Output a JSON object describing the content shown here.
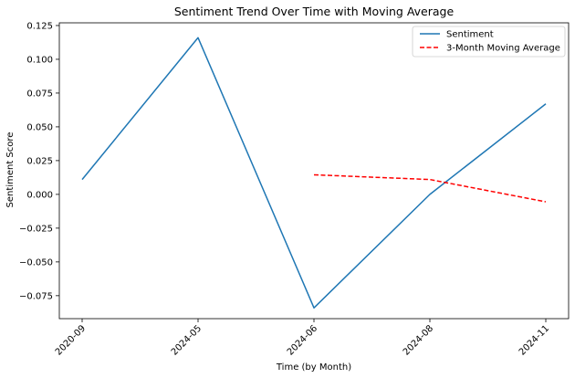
{
  "chart_data": {
    "type": "line",
    "title": "Sentiment Trend Over Time with Moving Average",
    "xlabel": "Time (by Month)",
    "ylabel": "Sentiment Score",
    "categories": [
      "2020-09",
      "2024-05",
      "2024-06",
      "2024-08",
      "2024-11"
    ],
    "ylim": [
      -0.092,
      0.127
    ],
    "yticks": [
      -0.075,
      -0.05,
      -0.025,
      0.0,
      0.025,
      0.05,
      0.075,
      0.1,
      0.125
    ],
    "ytick_labels": [
      "−0.075",
      "−0.050",
      "−0.025",
      "0.000",
      "0.025",
      "0.050",
      "0.075",
      "0.100",
      "0.125"
    ],
    "grid": false,
    "legend_position": "top-right",
    "series": [
      {
        "name": "Sentiment",
        "values": [
          0.011,
          0.116,
          -0.084,
          0.0,
          0.067
        ],
        "color": "#1f77b4",
        "style": "solid"
      },
      {
        "name": "3-Month Moving Average",
        "values": [
          null,
          null,
          0.0145,
          0.011,
          -0.0055
        ],
        "color": "#ff0000",
        "style": "dashed"
      }
    ]
  }
}
